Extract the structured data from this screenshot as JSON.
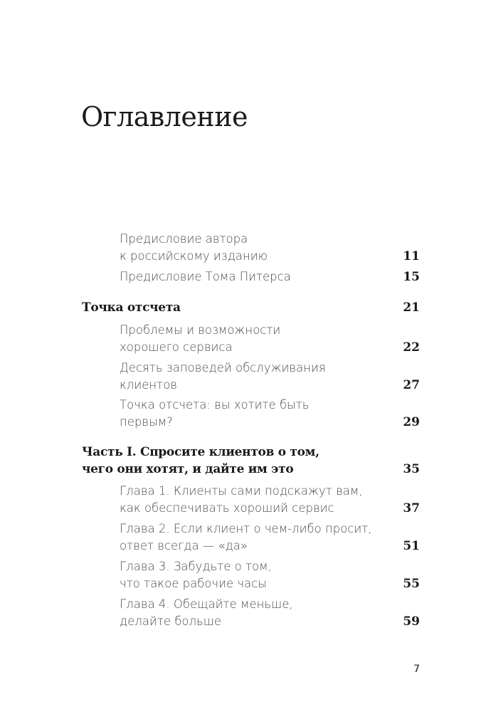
{
  "title": "Оглавление",
  "entries": [
    {
      "level": "sub",
      "lines": [
        "Предисловие автора",
        "к российскому изданию"
      ],
      "page": "11"
    },
    {
      "level": "sub",
      "lines": [
        "Предисловие Тома Питерса"
      ],
      "page": "15"
    },
    {
      "level": "main",
      "lines": [
        "Точка отсчета"
      ],
      "page": "21"
    },
    {
      "level": "sub",
      "lines": [
        "Проблемы и возможности",
        "хорошего сервиса"
      ],
      "page": "22"
    },
    {
      "level": "sub",
      "lines": [
        "Десять заповедей обслуживания",
        "клиентов"
      ],
      "page": "27"
    },
    {
      "level": "sub",
      "lines": [
        "Точка отсчета: вы хотите быть",
        "первым?"
      ],
      "page": "29"
    },
    {
      "level": "main",
      "lines": [
        "Часть I. Спросите клиентов о том,",
        "чего они хотят, и дайте им это"
      ],
      "page": "35"
    },
    {
      "level": "sub",
      "lines": [
        "Глава 1. Клиенты сами подскажут вам,",
        "как обеспечивать хороший сервис"
      ],
      "page": "37"
    },
    {
      "level": "sub",
      "lines": [
        "Глава 2. Если клиент о чем-либо просит,",
        "ответ всегда — «да»"
      ],
      "page": "51"
    },
    {
      "level": "sub",
      "lines": [
        "Глава 3. Забудьте о том,",
        "что такое рабочие часы"
      ],
      "page": "55"
    },
    {
      "level": "sub",
      "lines": [
        "Глава 4. Обещайте меньше,",
        "делайте больше"
      ],
      "page": "59"
    }
  ],
  "folio": "7"
}
